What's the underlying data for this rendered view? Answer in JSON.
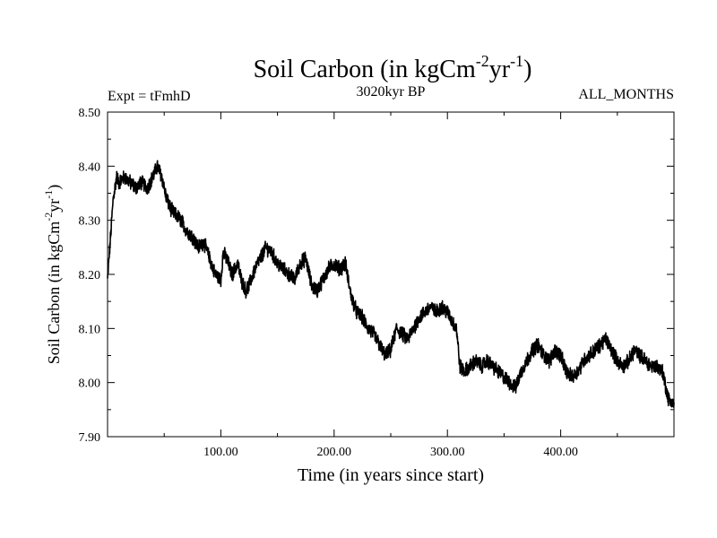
{
  "chart_data": {
    "type": "line",
    "title": {
      "base": "Soil Carbon (in kgCm",
      "exp1": "-2",
      "mid": "yr",
      "exp2": "-1",
      "end": ")"
    },
    "subtitle": "3020kyr BP",
    "expt_label": "Expt = tFmhD",
    "months_label": "ALL_MONTHS",
    "xlabel": "Time (in years since start)",
    "ylabel": {
      "base": "Soil Carbon (in kgCm",
      "exp1": "-2",
      "mid": "yr",
      "exp2": "-1",
      "end": ")"
    },
    "xlim": [
      0,
      500
    ],
    "ylim": [
      7.9,
      8.5
    ],
    "xticks": [
      100,
      200,
      300,
      400
    ],
    "xtick_labels": [
      "100.00",
      "200.00",
      "300.00",
      "400.00"
    ],
    "yticks": [
      7.9,
      8.0,
      8.1,
      8.2,
      8.3,
      8.4,
      8.5
    ],
    "ytick_labels": [
      "7.90",
      "8.00",
      "8.10",
      "8.20",
      "8.30",
      "8.40",
      "8.50"
    ],
    "line_color": "#000000",
    "noise_amplitude": 0.012,
    "series": [
      {
        "name": "Soil Carbon",
        "x": [
          0,
          2,
          5,
          8,
          10,
          15,
          20,
          25,
          30,
          35,
          40,
          44,
          48,
          52,
          56,
          60,
          65,
          70,
          75,
          80,
          85,
          90,
          95,
          100,
          102,
          105,
          110,
          115,
          118,
          122,
          125,
          130,
          135,
          140,
          145,
          150,
          155,
          160,
          165,
          170,
          175,
          180,
          185,
          190,
          195,
          200,
          205,
          210,
          215,
          220,
          225,
          230,
          235,
          240,
          245,
          250,
          255,
          260,
          265,
          270,
          275,
          280,
          285,
          290,
          295,
          300,
          305,
          308,
          311,
          315,
          320,
          325,
          330,
          335,
          340,
          345,
          350,
          355,
          360,
          365,
          370,
          375,
          380,
          385,
          390,
          395,
          400,
          405,
          410,
          415,
          420,
          425,
          430,
          435,
          440,
          445,
          450,
          455,
          460,
          465,
          470,
          475,
          480,
          485,
          490,
          495,
          500
        ],
        "y": [
          8.19,
          8.25,
          8.34,
          8.38,
          8.37,
          8.38,
          8.37,
          8.36,
          8.37,
          8.36,
          8.38,
          8.4,
          8.38,
          8.34,
          8.32,
          8.31,
          8.3,
          8.28,
          8.27,
          8.25,
          8.26,
          8.23,
          8.2,
          8.19,
          8.24,
          8.23,
          8.2,
          8.22,
          8.19,
          8.17,
          8.18,
          8.21,
          8.23,
          8.25,
          8.24,
          8.22,
          8.21,
          8.2,
          8.19,
          8.22,
          8.23,
          8.18,
          8.17,
          8.19,
          8.21,
          8.22,
          8.21,
          8.22,
          8.16,
          8.13,
          8.12,
          8.1,
          8.09,
          8.07,
          8.05,
          8.06,
          8.1,
          8.09,
          8.08,
          8.1,
          8.12,
          8.13,
          8.14,
          8.13,
          8.14,
          8.13,
          8.11,
          8.1,
          8.03,
          8.02,
          8.03,
          8.04,
          8.03,
          8.04,
          8.03,
          8.02,
          8.01,
          8.0,
          7.99,
          8.02,
          8.04,
          8.06,
          8.07,
          8.05,
          8.04,
          8.06,
          8.05,
          8.02,
          8.01,
          8.02,
          8.04,
          8.05,
          8.06,
          8.07,
          8.08,
          8.06,
          8.04,
          8.03,
          8.04,
          8.06,
          8.05,
          8.04,
          8.03,
          8.03,
          8.02,
          7.97,
          7.96
        ]
      }
    ]
  }
}
